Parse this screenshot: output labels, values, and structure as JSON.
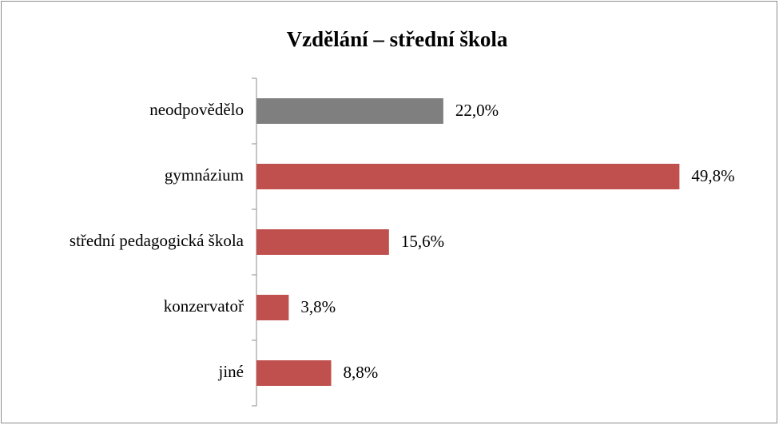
{
  "chart_data": {
    "type": "bar",
    "orientation": "horizontal",
    "title": "Vzdělání – střední škola",
    "categories": [
      "neodpovědělo",
      "gymnázium",
      "střední pedagogická škola",
      "konzervatoř",
      "jiné"
    ],
    "values": [
      22.0,
      49.8,
      15.6,
      3.8,
      8.8
    ],
    "value_labels": [
      "22,0%",
      "49,8%",
      "15,6%",
      "3,8%",
      "8,8%"
    ],
    "colors": [
      "#7f7f7f",
      "#c0504d",
      "#c0504d",
      "#c0504d",
      "#c0504d"
    ]
  }
}
